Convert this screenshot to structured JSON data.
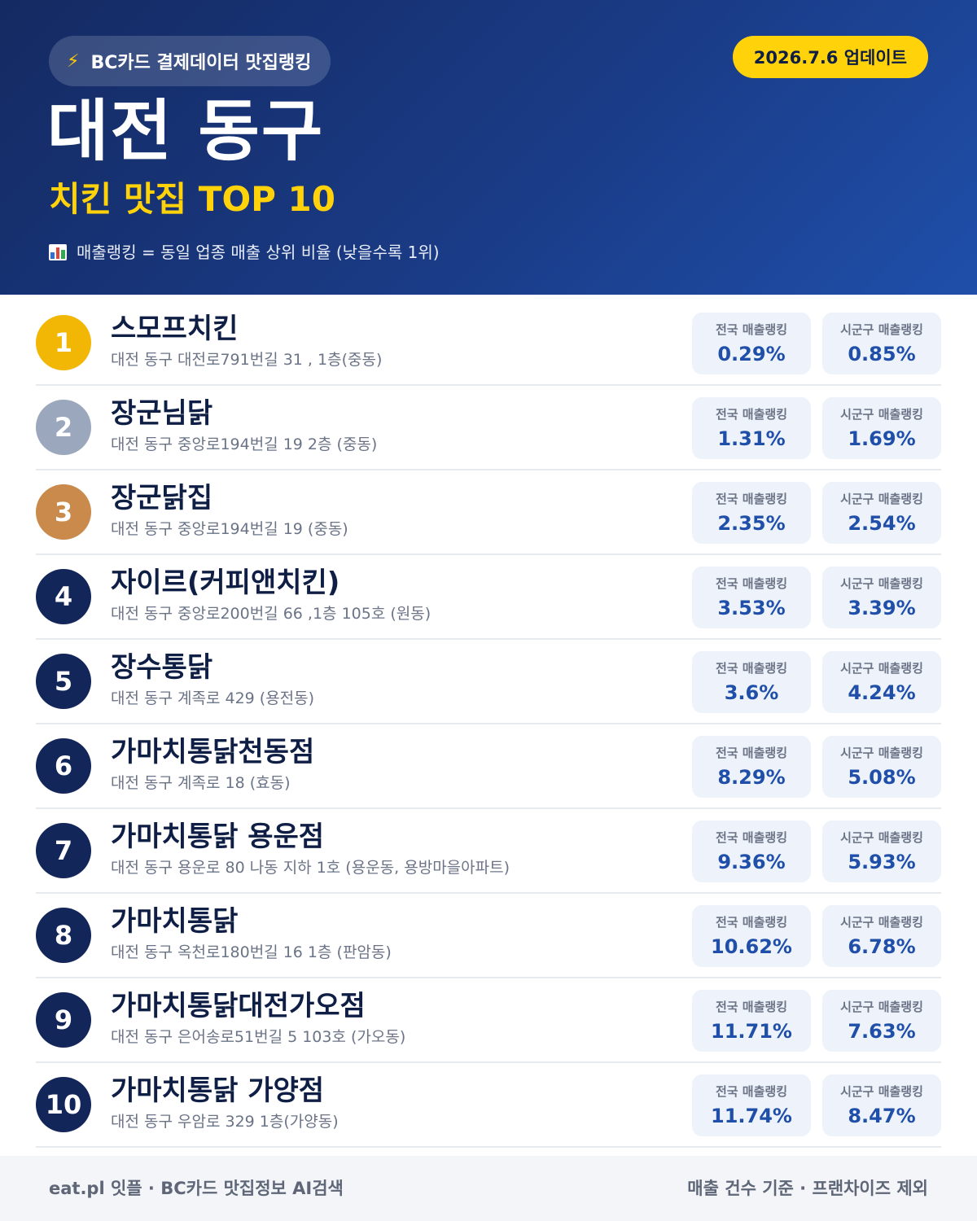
{
  "header": {
    "brand": "BC카드 결제데이터 맛집랭킹",
    "update": "2026.7.6 업데이트",
    "region": "대전 동구",
    "subtitle": "치킨 맛집 TOP 10",
    "legend": "매출랭킹 = 동일 업종 매출 상위 비율 (낮을수록 1위)"
  },
  "labels": {
    "national": "전국 매출랭킹",
    "local": "시군구 매출랭킹"
  },
  "colors": {
    "gold": "#f2b705",
    "silver": "#9aa7bd",
    "bronze": "#c98a4b",
    "navy": "#13265a",
    "accent": "#ffd20a"
  },
  "items": [
    {
      "rank": "1",
      "name": "스모프치킨",
      "address": "대전 동구 대전로791번길 31 , 1층(중동)",
      "national": "0.29%",
      "local": "0.85%"
    },
    {
      "rank": "2",
      "name": "장군님닭",
      "address": "대전 동구 중앙로194번길 19 2층 (중동)",
      "national": "1.31%",
      "local": "1.69%"
    },
    {
      "rank": "3",
      "name": "장군닭집",
      "address": "대전 동구 중앙로194번길 19 (중동)",
      "national": "2.35%",
      "local": "2.54%"
    },
    {
      "rank": "4",
      "name": "자이르(커피앤치킨)",
      "address": "대전 동구 중앙로200번길 66 ,1층 105호 (원동)",
      "national": "3.53%",
      "local": "3.39%"
    },
    {
      "rank": "5",
      "name": "장수통닭",
      "address": "대전 동구 계족로 429 (용전동)",
      "national": "3.6%",
      "local": "4.24%"
    },
    {
      "rank": "6",
      "name": "가마치통닭천동점",
      "address": "대전 동구 계족로 18 (효동)",
      "national": "8.29%",
      "local": "5.08%"
    },
    {
      "rank": "7",
      "name": "가마치통닭 용운점",
      "address": "대전 동구 용운로 80 나동 지하 1호 (용운동, 용방마을아파트)",
      "national": "9.36%",
      "local": "5.93%"
    },
    {
      "rank": "8",
      "name": "가마치통닭",
      "address": "대전 동구 옥천로180번길 16 1층 (판암동)",
      "national": "10.62%",
      "local": "6.78%"
    },
    {
      "rank": "9",
      "name": "가마치통닭대전가오점",
      "address": "대전 동구 은어송로51번길 5 103호 (가오동)",
      "national": "11.71%",
      "local": "7.63%"
    },
    {
      "rank": "10",
      "name": "가마치통닭 가양점",
      "address": "대전 동구 우암로 329 1층(가양동)",
      "national": "11.74%",
      "local": "8.47%"
    }
  ],
  "footer": {
    "left": "eat.pl 잇플 · BC카드 맛집정보 AI검색",
    "right": "매출 건수 기준 · 프랜차이즈 제외"
  }
}
